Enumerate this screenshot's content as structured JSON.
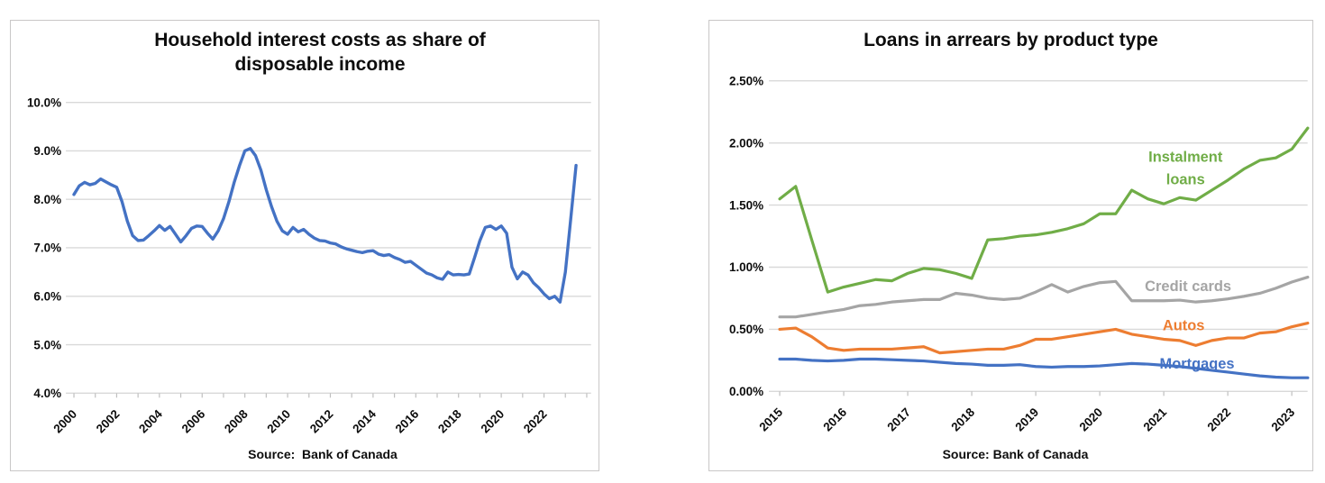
{
  "page": {
    "background": "#ffffff"
  },
  "colors": {
    "blue": "#4472C4",
    "orange": "#ED7D31",
    "gray": "#A5A5A5",
    "green": "#70AD47",
    "gridline": "#D9D9D9",
    "tick": "#BFBFBF",
    "text": "#0d0d0d",
    "border": "#c9c7c7"
  },
  "chart_data": [
    {
      "type": "line",
      "title": "Household interest costs as share of disposable income",
      "source": "Source:  Bank of Canada",
      "xlabel": "",
      "ylabel": "",
      "ylim": [
        4.0,
        10.0
      ],
      "grid": "horizontal",
      "legend_position": "none",
      "x_start": 2000.0,
      "x_step": 0.25,
      "x_tick_labels": [
        "2000",
        "2002",
        "2004",
        "2006",
        "2008",
        "2010",
        "2012",
        "2014",
        "2016",
        "2018",
        "2020",
        "2022"
      ],
      "x_tick_years": [
        2000,
        2002,
        2004,
        2006,
        2008,
        2010,
        2012,
        2014,
        2016,
        2018,
        2020,
        2022
      ],
      "y_tick_labels": [
        "4.0%",
        "5.0%",
        "6.0%",
        "7.0%",
        "8.0%",
        "9.0%",
        "10.0%"
      ],
      "y_tick_values": [
        4,
        5,
        6,
        7,
        8,
        9,
        10
      ],
      "series": [
        {
          "name": "Household interest costs",
          "color": "#4472C4",
          "values": [
            8.1,
            8.28,
            8.35,
            8.3,
            8.33,
            8.42,
            8.36,
            8.3,
            8.25,
            7.95,
            7.55,
            7.25,
            7.15,
            7.16,
            7.25,
            7.35,
            7.46,
            7.36,
            7.44,
            7.28,
            7.12,
            7.25,
            7.4,
            7.45,
            7.44,
            7.3,
            7.18,
            7.35,
            7.6,
            7.95,
            8.35,
            8.7,
            9.0,
            9.05,
            8.9,
            8.6,
            8.2,
            7.85,
            7.55,
            7.35,
            7.28,
            7.42,
            7.33,
            7.38,
            7.28,
            7.2,
            7.15,
            7.14,
            7.1,
            7.08,
            7.02,
            6.98,
            6.95,
            6.92,
            6.9,
            6.93,
            6.94,
            6.87,
            6.84,
            6.86,
            6.8,
            6.76,
            6.7,
            6.72,
            6.64,
            6.56,
            6.48,
            6.44,
            6.38,
            6.35,
            6.5,
            6.44,
            6.45,
            6.44,
            6.46,
            6.8,
            7.15,
            7.42,
            7.45,
            7.38,
            7.45,
            7.3,
            6.6,
            6.36,
            6.5,
            6.44,
            6.28,
            6.18,
            6.05,
            5.95,
            6.0,
            5.88,
            6.5,
            7.6,
            8.7
          ]
        }
      ],
      "annotations": []
    },
    {
      "type": "line",
      "title": "Loans in arrears by product type",
      "source": "Source: Bank of Canada",
      "xlabel": "",
      "ylabel": "",
      "ylim": [
        0.0,
        2.5
      ],
      "grid": "horizontal",
      "legend_position": "inline-labels",
      "x_start": 2015.0,
      "x_step": 0.25,
      "x_tick_labels": [
        "2015",
        "2016",
        "2017",
        "2018",
        "2019",
        "2020",
        "2021",
        "2022",
        "2023"
      ],
      "x_tick_years": [
        2015,
        2016,
        2017,
        2018,
        2019,
        2020,
        2021,
        2022,
        2023
      ],
      "y_tick_labels": [
        "0.00%",
        "0.50%",
        "1.00%",
        "1.50%",
        "2.00%",
        "2.50%"
      ],
      "y_tick_values": [
        0,
        0.5,
        1.0,
        1.5,
        2.0,
        2.5
      ],
      "series": [
        {
          "name": "Instalment loans",
          "color": "#70AD47",
          "values": [
            1.55,
            1.65,
            1.22,
            0.8,
            0.84,
            0.87,
            0.9,
            0.89,
            0.95,
            0.99,
            0.98,
            0.95,
            0.91,
            1.22,
            1.23,
            1.25,
            1.26,
            1.28,
            1.31,
            1.35,
            1.43,
            1.43,
            1.62,
            1.55,
            1.51,
            1.56,
            1.54,
            1.62,
            1.7,
            1.79,
            1.86,
            1.88,
            1.95,
            2.12
          ]
        },
        {
          "name": "Credit cards",
          "color": "#A5A5A5",
          "values": [
            0.6,
            0.6,
            0.62,
            0.64,
            0.66,
            0.69,
            0.7,
            0.72,
            0.73,
            0.74,
            0.74,
            0.79,
            0.775,
            0.75,
            0.74,
            0.75,
            0.8,
            0.86,
            0.8,
            0.845,
            0.875,
            0.885,
            0.73,
            0.73,
            0.73,
            0.735,
            0.72,
            0.73,
            0.745,
            0.765,
            0.79,
            0.83,
            0.88,
            0.92
          ]
        },
        {
          "name": "Autos",
          "color": "#ED7D31",
          "values": [
            0.5,
            0.51,
            0.44,
            0.35,
            0.33,
            0.34,
            0.34,
            0.34,
            0.35,
            0.36,
            0.31,
            0.32,
            0.33,
            0.34,
            0.34,
            0.37,
            0.42,
            0.42,
            0.44,
            0.46,
            0.48,
            0.5,
            0.46,
            0.44,
            0.42,
            0.41,
            0.37,
            0.41,
            0.43,
            0.43,
            0.47,
            0.48,
            0.52,
            0.55
          ]
        },
        {
          "name": "Mortgages",
          "color": "#4472C4",
          "values": [
            0.26,
            0.26,
            0.25,
            0.245,
            0.25,
            0.26,
            0.26,
            0.255,
            0.25,
            0.245,
            0.235,
            0.225,
            0.22,
            0.21,
            0.21,
            0.215,
            0.2,
            0.195,
            0.2,
            0.2,
            0.205,
            0.215,
            0.225,
            0.22,
            0.21,
            0.2,
            0.185,
            0.17,
            0.155,
            0.14,
            0.125,
            0.115,
            0.11,
            0.11
          ]
        }
      ],
      "annotations": [
        {
          "name": "instalment-loans-label",
          "lines": [
            "Instalment",
            "loans"
          ],
          "color": "#70AD47",
          "x_year": 2021.34,
          "y_value": 1.8
        },
        {
          "name": "credit-cards-label",
          "lines": [
            "Credit cards"
          ],
          "color": "#A5A5A5",
          "x_year": 2021.38,
          "y_value": 0.85
        },
        {
          "name": "autos-label",
          "lines": [
            "Autos"
          ],
          "color": "#ED7D31",
          "x_year": 2021.31,
          "y_value": 0.535
        },
        {
          "name": "mortgages-label",
          "lines": [
            "Mortgages"
          ],
          "color": "#4472C4",
          "x_year": 2021.52,
          "y_value": 0.225
        }
      ]
    }
  ]
}
